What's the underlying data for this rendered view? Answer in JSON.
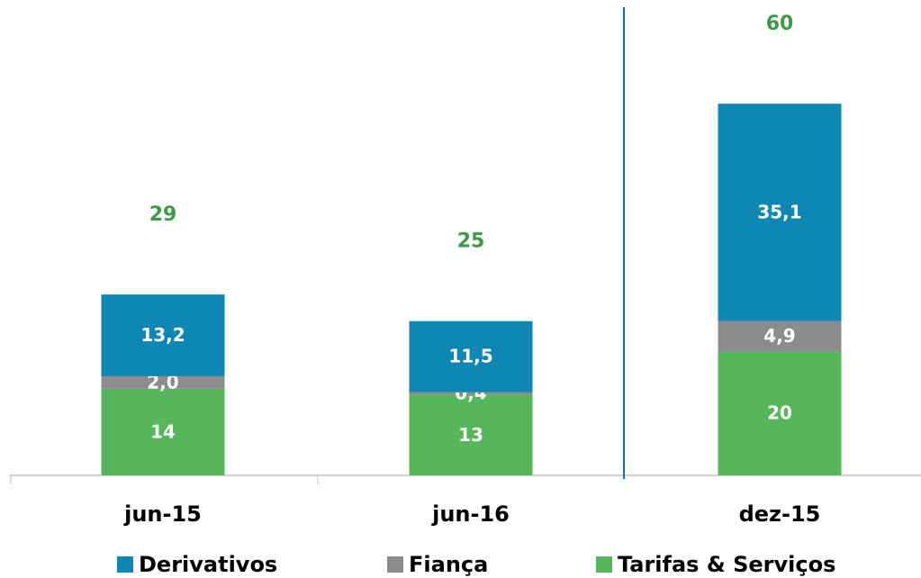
{
  "chart_data": {
    "type": "stacked_bar",
    "categories": [
      "jun-15",
      "jun-16",
      "dez-15"
    ],
    "series": [
      {
        "name": "Derivativos",
        "color": "#0e87b3",
        "values": [
          13.2,
          11.5,
          35.1
        ],
        "value_labels": [
          "13,2",
          "11,5",
          "35,1"
        ]
      },
      {
        "name": "Fiança",
        "color": "#8c8c8c",
        "values": [
          2.0,
          0.4,
          4.9
        ],
        "value_labels": [
          "2,0",
          "0,4",
          "4,9"
        ]
      },
      {
        "name": "Tarifas & Serviços",
        "color": "#55b65a",
        "values": [
          14,
          13,
          20
        ]
      }
    ],
    "totals": [
      29,
      25,
      60
    ],
    "totals_color": "#3f9a45",
    "legend": "bottom"
  }
}
